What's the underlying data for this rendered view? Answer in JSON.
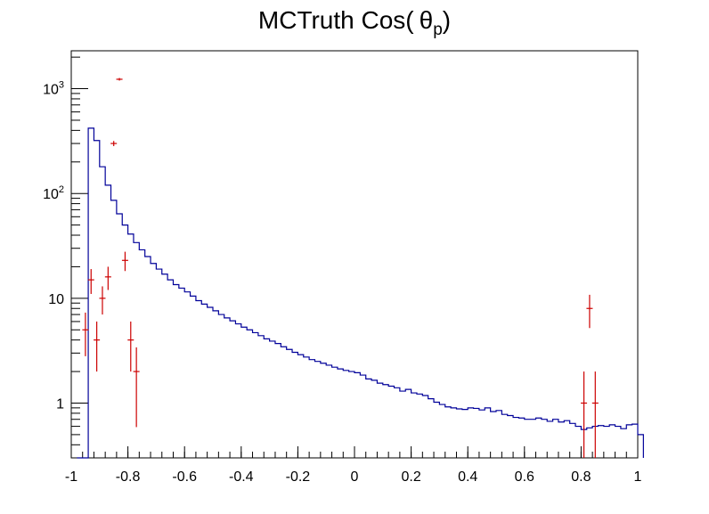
{
  "chart_data": {
    "type": "histogram",
    "title_main": "MCTruth Cos(",
    "title_symbol": "θ",
    "title_sub": "p",
    "title_close": ")",
    "xlim": [
      -1,
      1
    ],
    "ylim": [
      0.3,
      2300
    ],
    "y_scale": "log",
    "grid": false,
    "x_ticks": [
      -1,
      -0.8,
      -0.6,
      -0.4,
      -0.2,
      0,
      0.2,
      0.4,
      0.6,
      0.8,
      1
    ],
    "x_tick_labels": [
      "-1",
      "-0.8",
      "-0.6",
      "-0.4",
      "-0.2",
      "0",
      "0.2",
      "0.4",
      "0.6",
      "0.8",
      "1"
    ],
    "y_ticks": [
      1,
      10,
      100,
      1000
    ],
    "y_tick_labels": [
      {
        "base": "1",
        "exp": ""
      },
      {
        "base": "10",
        "exp": ""
      },
      {
        "base": "10",
        "exp": "2"
      },
      {
        "base": "10",
        "exp": "3"
      }
    ],
    "series": [
      {
        "style": "step",
        "color": "#000099",
        "bin_edges_start": -0.98,
        "bin_width": 0.02,
        "values": [
          0.3,
          0.3,
          420,
          320,
          180,
          120,
          86,
          64,
          50,
          41,
          34,
          29,
          25,
          21.5,
          19,
          17,
          15,
          13.5,
          12.5,
          11.5,
          10.5,
          9.5,
          8.8,
          8.2,
          7.6,
          7.0,
          6.5,
          6.1,
          5.7,
          5.3,
          5.0,
          4.7,
          4.4,
          4.1,
          3.9,
          3.7,
          3.45,
          3.25,
          3.05,
          2.9,
          2.75,
          2.6,
          2.5,
          2.4,
          2.3,
          2.2,
          2.12,
          2.05,
          2.0,
          1.95,
          1.85,
          1.7,
          1.65,
          1.55,
          1.5,
          1.45,
          1.4,
          1.3,
          1.35,
          1.25,
          1.22,
          1.18,
          1.1,
          1.02,
          0.97,
          0.92,
          0.9,
          0.88,
          0.87,
          0.9,
          0.89,
          0.86,
          0.9,
          0.83,
          0.85,
          0.78,
          0.76,
          0.73,
          0.72,
          0.7,
          0.7,
          0.72,
          0.7,
          0.67,
          0.7,
          0.66,
          0.68,
          0.64,
          0.6,
          0.56,
          0.58,
          0.6,
          0.61,
          0.6,
          0.62,
          0.6,
          0.57,
          0.62,
          0.63,
          0.5
        ]
      },
      {
        "style": "errorbar",
        "color": "#cc0000",
        "points": [
          {
            "x": -0.95,
            "y": 5,
            "ylo": 2.8,
            "yhi": 7.3
          },
          {
            "x": -0.93,
            "y": 15,
            "ylo": 11,
            "yhi": 19
          },
          {
            "x": -0.91,
            "y": 4,
            "ylo": 2,
            "yhi": 6
          },
          {
            "x": -0.89,
            "y": 10,
            "ylo": 7,
            "yhi": 13
          },
          {
            "x": -0.87,
            "y": 16,
            "ylo": 12,
            "yhi": 20
          },
          {
            "x": -0.85,
            "y": 300,
            "ylo": 283,
            "yhi": 317
          },
          {
            "x": -0.83,
            "y": 1230,
            "ylo": 1195,
            "yhi": 1265
          },
          {
            "x": -0.81,
            "y": 23,
            "ylo": 18.2,
            "yhi": 27.8
          },
          {
            "x": -0.79,
            "y": 4,
            "ylo": 2,
            "yhi": 6
          },
          {
            "x": -0.77,
            "y": 2,
            "ylo": 0.59,
            "yhi": 3.4
          },
          {
            "x": 0.81,
            "y": 1,
            "ylo": 0.3,
            "yhi": 2
          },
          {
            "x": 0.83,
            "y": 8,
            "ylo": 5.2,
            "yhi": 10.8
          },
          {
            "x": 0.85,
            "y": 1,
            "ylo": 0.3,
            "yhi": 2
          }
        ]
      }
    ]
  }
}
